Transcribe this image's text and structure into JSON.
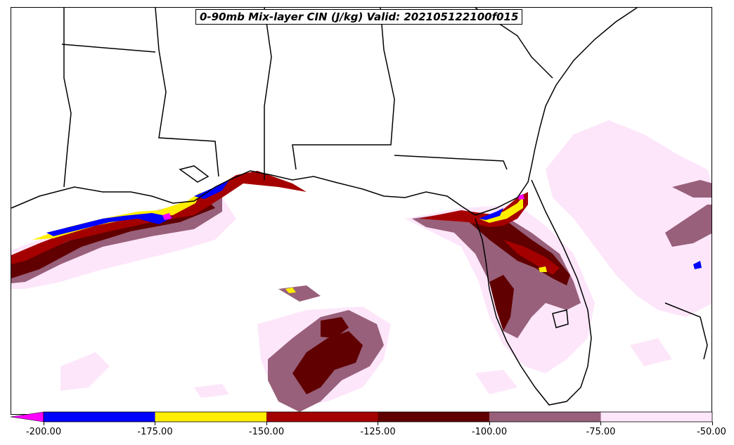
{
  "title": "0-90mb Mix-layer CIN (J/kg) Valid: 202105122100f015",
  "colorbar": {
    "extend": "min",
    "extend_color": "#ff00ff",
    "bins": [
      {
        "from": -200,
        "to": -175,
        "color": "#0000ff"
      },
      {
        "from": -175,
        "to": -150,
        "color": "#ffee00"
      },
      {
        "from": -150,
        "to": -125,
        "color": "#a50000"
      },
      {
        "from": -125,
        "to": -100,
        "color": "#600000"
      },
      {
        "from": -100,
        "to": -75,
        "color": "#98607a"
      },
      {
        "from": -75,
        "to": -50,
        "color": "#fde6fa"
      }
    ],
    "tick_labels": [
      "-200.00",
      "-175.00",
      "-150.00",
      "-125.00",
      "-100.00",
      "-75.00",
      "-50.00"
    ]
  },
  "map": {
    "region": "Southeastern United States and Gulf of Mexico",
    "border_color": "#000000"
  }
}
